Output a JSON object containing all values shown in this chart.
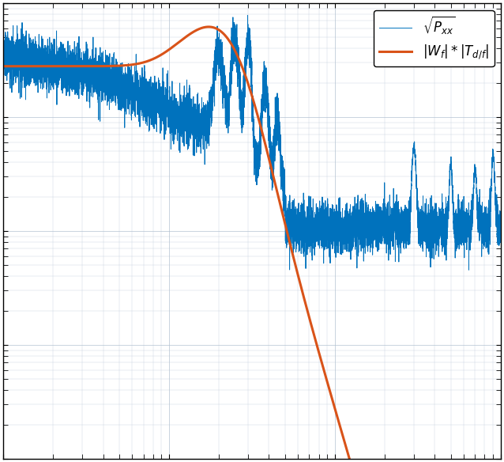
{
  "title": "",
  "xlabel": "",
  "ylabel": "",
  "line1_label": "$\\sqrt{P_{xx}}$",
  "line2_label": "$|W_f| * |T_{d/f}|$",
  "line1_color": "#0072BD",
  "line2_color": "#D95319",
  "background_color": "#ffffff",
  "grid_color": "#b0c0d0",
  "figsize": [
    6.38,
    5.84
  ],
  "dpi": 100
}
